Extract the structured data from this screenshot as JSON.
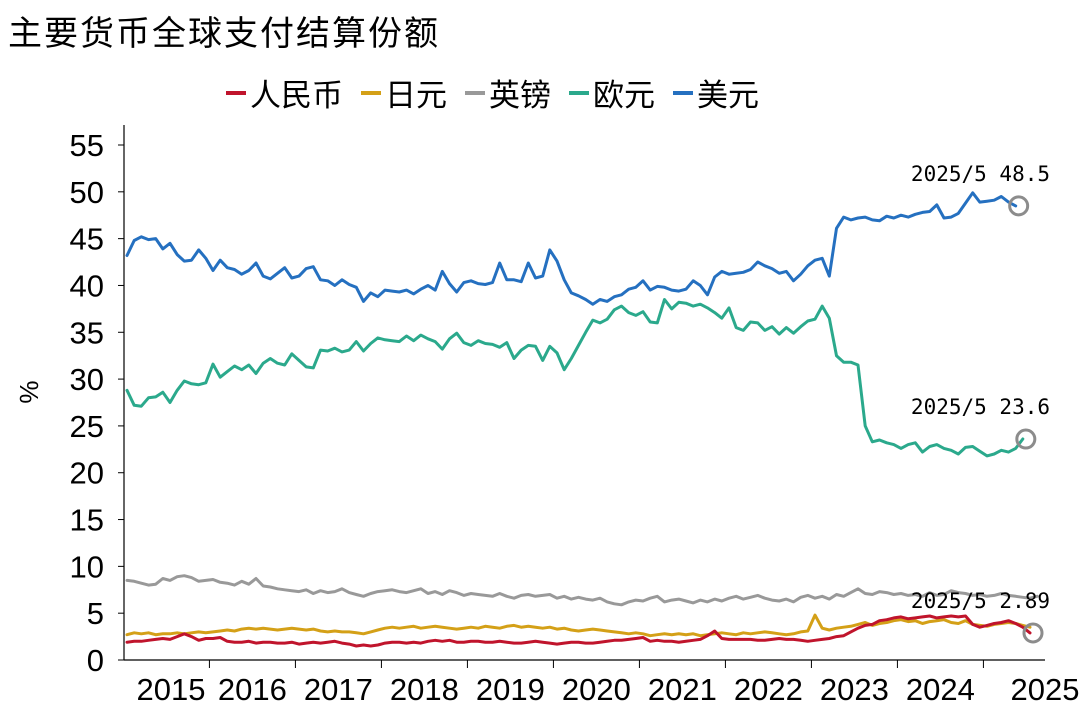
{
  "chart_data": {
    "type": "line",
    "title": "主要货币全球支付结算份额",
    "ylabel": "%",
    "xlabel": "",
    "ylim": [
      0,
      55
    ],
    "yticks": [
      0,
      5,
      10,
      15,
      20,
      25,
      30,
      35,
      40,
      45,
      50,
      55
    ],
    "xticks": [
      "2015",
      "2016",
      "2017",
      "2018",
      "2019",
      "2020",
      "2021",
      "2022",
      "2023",
      "2024",
      "2025"
    ],
    "x_start": "2015-01",
    "x_end": "2025-05",
    "grid": false,
    "legend_position": "top",
    "series": [
      {
        "name": "人民币",
        "color": "#C0142C",
        "values": [
          1.9,
          2.0,
          2.0,
          2.1,
          2.2,
          2.3,
          2.2,
          2.5,
          2.8,
          2.5,
          2.1,
          2.3,
          2.3,
          2.4,
          2.0,
          1.9,
          1.9,
          2.0,
          1.8,
          1.9,
          1.9,
          1.8,
          1.8,
          1.9,
          1.7,
          1.8,
          1.9,
          1.8,
          1.9,
          2.0,
          1.8,
          1.7,
          1.5,
          1.6,
          1.5,
          1.6,
          1.8,
          1.9,
          1.9,
          1.8,
          1.9,
          1.8,
          2.0,
          2.1,
          2.0,
          2.1,
          1.9,
          1.9,
          2.0,
          2.0,
          1.9,
          1.9,
          2.0,
          1.9,
          1.8,
          1.8,
          1.9,
          2.0,
          1.9,
          1.8,
          1.7,
          1.8,
          1.9,
          1.9,
          1.8,
          1.8,
          1.9,
          2.0,
          2.1,
          2.1,
          2.2,
          2.3,
          2.4,
          2.0,
          2.1,
          2.0,
          2.0,
          1.9,
          2.0,
          2.1,
          2.2,
          2.6,
          3.1,
          2.3,
          2.2,
          2.2,
          2.2,
          2.2,
          2.1,
          2.1,
          2.2,
          2.3,
          2.2,
          2.2,
          2.1,
          2.0,
          2.1,
          2.2,
          2.3,
          2.5,
          2.6,
          3.0,
          3.4,
          3.7,
          3.8,
          4.2,
          4.3,
          4.5,
          4.6,
          4.4,
          4.5,
          4.6,
          4.7,
          4.5,
          4.6,
          4.7,
          4.6,
          4.7,
          3.8,
          3.5,
          3.7,
          3.9,
          4.0,
          4.2,
          3.9,
          3.5,
          2.89
        ]
      },
      {
        "name": "日元",
        "color": "#D4A017",
        "values": [
          2.7,
          2.9,
          2.8,
          2.9,
          2.7,
          2.8,
          2.8,
          2.9,
          2.8,
          2.9,
          3.0,
          2.9,
          3.0,
          3.1,
          3.2,
          3.1,
          3.3,
          3.4,
          3.3,
          3.4,
          3.3,
          3.2,
          3.3,
          3.4,
          3.3,
          3.2,
          3.3,
          3.1,
          3.0,
          3.1,
          3.0,
          3.0,
          2.9,
          2.8,
          3.0,
          3.2,
          3.4,
          3.5,
          3.4,
          3.5,
          3.6,
          3.4,
          3.5,
          3.6,
          3.5,
          3.4,
          3.3,
          3.4,
          3.5,
          3.4,
          3.6,
          3.5,
          3.4,
          3.6,
          3.7,
          3.5,
          3.6,
          3.5,
          3.4,
          3.5,
          3.3,
          3.4,
          3.2,
          3.1,
          3.2,
          3.3,
          3.2,
          3.1,
          3.0,
          2.9,
          2.8,
          2.9,
          2.8,
          2.6,
          2.7,
          2.8,
          2.7,
          2.8,
          2.7,
          2.8,
          2.6,
          2.7,
          2.8,
          2.9,
          2.8,
          2.7,
          2.9,
          2.8,
          2.9,
          3.0,
          2.9,
          2.8,
          2.7,
          2.8,
          3.0,
          3.1,
          4.8,
          3.4,
          3.2,
          3.4,
          3.5,
          3.6,
          3.8,
          4.0,
          3.7,
          3.9,
          4.0,
          4.2,
          4.3,
          4.1,
          4.2,
          3.9,
          4.1,
          4.2,
          4.3,
          4.0,
          3.9,
          4.2,
          3.8,
          3.7,
          3.6,
          3.8,
          3.9,
          4.0,
          3.9,
          3.7,
          3.5
        ]
      },
      {
        "name": "英镑",
        "color": "#999999",
        "values": [
          8.5,
          8.4,
          8.2,
          8.0,
          8.1,
          8.7,
          8.5,
          8.9,
          9.0,
          8.8,
          8.4,
          8.5,
          8.6,
          8.3,
          8.2,
          8.0,
          8.4,
          8.1,
          8.7,
          7.9,
          7.8,
          7.6,
          7.5,
          7.4,
          7.3,
          7.5,
          7.1,
          7.4,
          7.2,
          7.3,
          7.6,
          7.2,
          7.0,
          6.8,
          7.1,
          7.3,
          7.4,
          7.5,
          7.3,
          7.2,
          7.4,
          7.6,
          7.1,
          7.3,
          7.0,
          7.4,
          7.2,
          6.9,
          7.1,
          7.0,
          6.9,
          6.8,
          7.1,
          6.8,
          6.6,
          6.9,
          7.0,
          6.8,
          6.9,
          7.0,
          6.6,
          6.8,
          6.5,
          6.7,
          6.5,
          6.4,
          6.6,
          6.2,
          6.0,
          5.9,
          6.2,
          6.4,
          6.3,
          6.6,
          6.8,
          6.2,
          6.4,
          6.5,
          6.3,
          6.1,
          6.4,
          6.2,
          6.5,
          6.3,
          6.6,
          6.8,
          6.5,
          6.7,
          6.9,
          6.6,
          6.4,
          6.3,
          6.5,
          6.2,
          6.7,
          6.9,
          6.6,
          6.8,
          6.5,
          7.0,
          6.8,
          7.2,
          7.6,
          7.1,
          7.0,
          7.3,
          7.2,
          7.0,
          7.1,
          6.9,
          7.0,
          6.8,
          7.2,
          6.9,
          7.0,
          7.4,
          7.2,
          7.1,
          6.9,
          7.0,
          6.8,
          6.9,
          7.1,
          6.9,
          6.8,
          6.7,
          6.6,
          6.8
        ]
      },
      {
        "name": "欧元",
        "color": "#2BA98C",
        "values": [
          28.8,
          27.2,
          27.1,
          28.0,
          28.1,
          28.6,
          27.5,
          28.8,
          29.8,
          29.5,
          29.4,
          29.6,
          31.6,
          30.2,
          30.8,
          31.4,
          31.0,
          31.5,
          30.6,
          31.7,
          32.2,
          31.7,
          31.5,
          32.7,
          32.0,
          31.3,
          31.2,
          33.1,
          33.0,
          33.3,
          32.9,
          33.1,
          34.0,
          33.0,
          33.8,
          34.4,
          34.2,
          34.1,
          34.0,
          34.6,
          34.1,
          34.7,
          34.3,
          34.0,
          33.2,
          34.3,
          34.9,
          33.9,
          33.6,
          34.1,
          33.8,
          33.7,
          33.4,
          33.9,
          32.2,
          33.1,
          33.6,
          33.5,
          32.0,
          33.5,
          32.8,
          31.0,
          32.2,
          33.6,
          35.0,
          36.3,
          36.0,
          36.4,
          37.4,
          37.8,
          37.1,
          36.8,
          37.2,
          36.1,
          36.0,
          38.5,
          37.5,
          38.2,
          38.1,
          37.8,
          38.0,
          37.6,
          37.1,
          36.5,
          37.6,
          35.5,
          35.2,
          36.1,
          36.0,
          35.2,
          35.6,
          34.8,
          35.5,
          34.9,
          35.6,
          36.2,
          36.4,
          37.8,
          36.5,
          32.5,
          31.8,
          31.8,
          31.5,
          25.0,
          23.3,
          23.5,
          23.2,
          23.0,
          22.6,
          23.0,
          23.2,
          22.2,
          22.8,
          23.0,
          22.6,
          22.4,
          22.0,
          22.7,
          22.8,
          22.3,
          21.8,
          22.0,
          22.4,
          22.2,
          22.6,
          23.6
        ]
      },
      {
        "name": "美元",
        "color": "#2570C0",
        "values": [
          43.2,
          44.8,
          45.2,
          44.9,
          45.0,
          43.9,
          44.5,
          43.3,
          42.6,
          42.7,
          43.8,
          42.9,
          41.6,
          42.7,
          41.9,
          41.7,
          41.2,
          41.6,
          42.4,
          41.0,
          40.7,
          41.3,
          41.9,
          40.8,
          41.0,
          41.8,
          42.0,
          40.6,
          40.5,
          40.0,
          40.6,
          40.1,
          39.8,
          38.3,
          39.2,
          38.8,
          39.5,
          39.4,
          39.3,
          39.5,
          39.1,
          39.6,
          40.0,
          39.5,
          41.5,
          40.2,
          39.3,
          40.3,
          40.5,
          40.2,
          40.1,
          40.3,
          42.4,
          40.6,
          40.6,
          40.4,
          42.4,
          40.8,
          41.0,
          43.8,
          42.6,
          40.6,
          39.2,
          38.9,
          38.5,
          38.0,
          38.5,
          38.3,
          38.8,
          39.0,
          39.6,
          39.8,
          40.5,
          39.5,
          39.9,
          39.8,
          39.5,
          39.4,
          39.6,
          40.5,
          40.0,
          39.0,
          40.9,
          41.5,
          41.2,
          41.3,
          41.4,
          41.7,
          42.5,
          42.1,
          41.8,
          41.3,
          41.5,
          40.5,
          41.2,
          42.1,
          42.7,
          42.9,
          41.0,
          46.1,
          47.3,
          47.0,
          47.2,
          47.3,
          47.0,
          46.9,
          47.4,
          47.2,
          47.5,
          47.3,
          47.6,
          47.8,
          47.9,
          48.6,
          47.2,
          47.3,
          47.7,
          48.8,
          49.9,
          48.9,
          49.0,
          49.1,
          49.5,
          48.9,
          48.5
        ]
      }
    ],
    "annotations": [
      {
        "series": "美元",
        "text": "2025/5 48.5",
        "value": 48.5
      },
      {
        "series": "欧元",
        "text": "2025/5 23.6",
        "value": 23.6
      },
      {
        "series": "人民币",
        "text": "2025/5 2.89",
        "value": 2.89
      }
    ]
  }
}
